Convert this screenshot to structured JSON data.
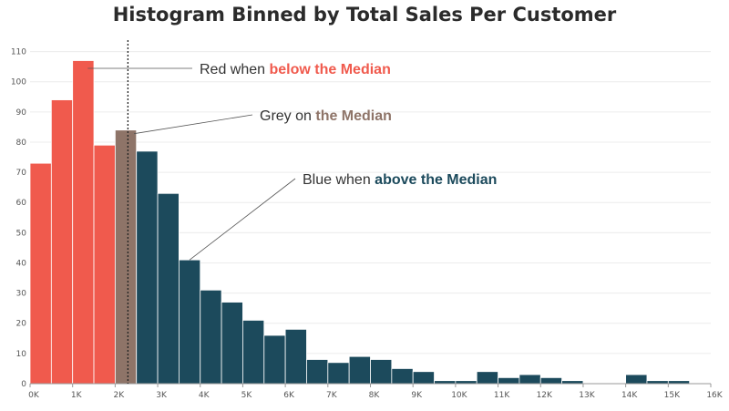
{
  "chart_data": {
    "type": "bar",
    "title": "Histogram Binned by Total Sales Per Customer",
    "xlabel": "",
    "ylabel": "",
    "bin_width": 500,
    "bin_starts": [
      0,
      500,
      1000,
      1500,
      2000,
      2500,
      3000,
      3500,
      4000,
      4500,
      5000,
      5500,
      6000,
      6500,
      7000,
      7500,
      8000,
      8500,
      9000,
      9500,
      10000,
      10500,
      11000,
      11500,
      12000,
      12500,
      13000,
      13500,
      14000,
      14500,
      15000,
      15500
    ],
    "values": [
      73,
      94,
      107,
      79,
      84,
      77,
      63,
      41,
      31,
      27,
      21,
      16,
      18,
      8,
      7,
      9,
      8,
      5,
      4,
      1,
      1,
      4,
      2,
      3,
      2,
      1,
      0,
      0,
      3,
      1,
      1,
      0
    ],
    "bin_color_class": [
      "below",
      "below",
      "below",
      "below",
      "median",
      "above",
      "above",
      "above",
      "above",
      "above",
      "above",
      "above",
      "above",
      "above",
      "above",
      "above",
      "above",
      "above",
      "above",
      "above",
      "above",
      "above",
      "above",
      "above",
      "above",
      "above",
      "above",
      "above",
      "above",
      "above",
      "above",
      "above"
    ],
    "median": 2300,
    "xlim": [
      0,
      16000
    ],
    "ylim": [
      0,
      115
    ],
    "xticks": [
      0,
      1000,
      2000,
      3000,
      4000,
      5000,
      6000,
      7000,
      8000,
      9000,
      10000,
      11000,
      12000,
      13000,
      14000,
      15000,
      16000
    ],
    "xtick_labels": [
      "0K",
      "1K",
      "2K",
      "3K",
      "4K",
      "5K",
      "6K",
      "7K",
      "8K",
      "9K",
      "10K",
      "11K",
      "12K",
      "13K",
      "14K",
      "15K",
      "16K"
    ],
    "yticks": [
      0,
      10,
      20,
      30,
      40,
      50,
      60,
      70,
      80,
      90,
      100,
      110
    ],
    "ytick_labels": [
      "0",
      "10",
      "20",
      "30",
      "40",
      "50",
      "60",
      "70",
      "80",
      "90",
      "100",
      "110"
    ],
    "grid": true,
    "colors": {
      "below": "#f05a4d",
      "median": "#8e7468",
      "above": "#1c4a5c"
    },
    "annotations": [
      {
        "id": "red",
        "text_plain": "Red when ",
        "text_bold": "below the Median",
        "bold_color": "#f05a4d",
        "target_bin": 2
      },
      {
        "id": "grey",
        "text_plain": "Grey on ",
        "text_bold": "the Median",
        "bold_color": "#8e7468",
        "target_bin": 4
      },
      {
        "id": "blue",
        "text_plain": "Blue when ",
        "text_bold": "above the Median",
        "bold_color": "#1c4a5c",
        "target_bin": 7
      }
    ]
  }
}
